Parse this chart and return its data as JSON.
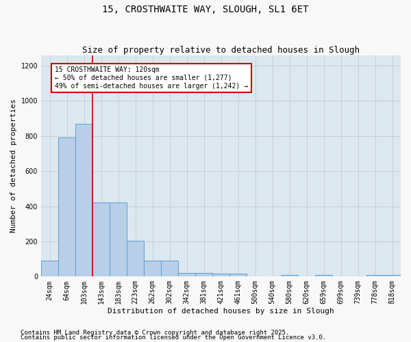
{
  "title1": "15, CROSTHWAITE WAY, SLOUGH, SL1 6ET",
  "title2": "Size of property relative to detached houses in Slough",
  "xlabel": "Distribution of detached houses by size in Slough",
  "ylabel": "Number of detached properties",
  "categories": [
    "24sqm",
    "64sqm",
    "103sqm",
    "143sqm",
    "183sqm",
    "223sqm",
    "262sqm",
    "302sqm",
    "342sqm",
    "381sqm",
    "421sqm",
    "461sqm",
    "500sqm",
    "540sqm",
    "580sqm",
    "620sqm",
    "659sqm",
    "699sqm",
    "739sqm",
    "778sqm",
    "818sqm"
  ],
  "values": [
    90,
    790,
    870,
    420,
    420,
    205,
    90,
    90,
    20,
    20,
    15,
    15,
    0,
    0,
    10,
    0,
    10,
    0,
    0,
    10,
    10
  ],
  "bar_color": "#b8cfe8",
  "bar_edge_color": "#5a9fd4",
  "vline_color": "#cc0000",
  "annotation_text": "15 CROSTHWAITE WAY: 120sqm\n← 50% of detached houses are smaller (1,277)\n49% of semi-detached houses are larger (1,242) →",
  "annotation_box_color": "#ffffff",
  "annotation_box_edge": "#cc0000",
  "ylim": [
    0,
    1260
  ],
  "yticks": [
    0,
    200,
    400,
    600,
    800,
    1000,
    1200
  ],
  "grid_color": "#c8c8c8",
  "bg_color": "#dce8f0",
  "fig_bg_color": "#f8f8f8",
  "footer1": "Contains HM Land Registry data © Crown copyright and database right 2025.",
  "footer2": "Contains public sector information licensed under the Open Government Licence v3.0.",
  "title_fontsize": 10,
  "subtitle_fontsize": 9,
  "axis_label_fontsize": 8,
  "tick_fontsize": 7,
  "annot_fontsize": 7,
  "footer_fontsize": 6.5
}
